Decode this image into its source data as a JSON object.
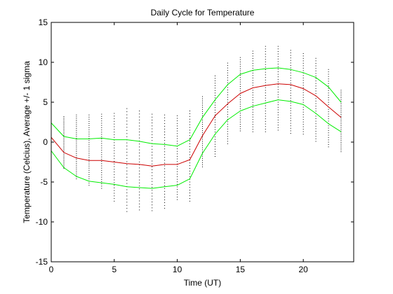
{
  "chart_data": {
    "type": "line",
    "title": "Daily Cycle for Temperature",
    "xlabel": "Time (UT)",
    "ylabel": "Temperature (Celcius), Average +/- 1 sigma",
    "xlim": [
      0,
      24
    ],
    "ylim": [
      -15,
      15
    ],
    "xticks": [
      0,
      5,
      10,
      15,
      20
    ],
    "yticks": [
      -15,
      -10,
      -5,
      0,
      5,
      10,
      15
    ],
    "grid": false,
    "x": [
      0,
      1,
      2,
      3,
      4,
      5,
      6,
      7,
      8,
      9,
      10,
      11,
      12,
      13,
      14,
      15,
      16,
      17,
      18,
      19,
      20,
      21,
      22,
      23
    ],
    "series": [
      {
        "role": "average",
        "color": "#cc0000",
        "values": [
          0.6,
          -1.3,
          -2.0,
          -2.3,
          -2.3,
          -2.5,
          -2.7,
          -2.8,
          -3.0,
          -2.8,
          -2.8,
          -2.2,
          0.8,
          3.3,
          4.8,
          6.1,
          6.8,
          7.1,
          7.3,
          7.2,
          6.7,
          5.8,
          4.4,
          3.1
        ]
      },
      {
        "role": "plus-1-sigma",
        "color": "#00ee00",
        "values": [
          2.4,
          0.7,
          0.4,
          0.4,
          0.5,
          0.3,
          0.3,
          0.1,
          -0.2,
          -0.3,
          -0.5,
          0.3,
          3.1,
          5.3,
          7.2,
          8.5,
          9.0,
          9.2,
          9.3,
          9.1,
          8.7,
          8.1,
          6.9,
          5.0
        ]
      },
      {
        "role": "minus-1-sigma",
        "color": "#00ee00",
        "values": [
          -1.1,
          -3.2,
          -4.3,
          -4.9,
          -5.1,
          -5.3,
          -5.6,
          -5.7,
          -5.8,
          -5.6,
          -5.4,
          -4.6,
          -1.4,
          1.0,
          2.8,
          3.9,
          4.5,
          4.9,
          5.3,
          5.1,
          4.7,
          3.6,
          2.3,
          1.3
        ]
      },
      {
        "role": "observations",
        "marker": "dot",
        "color": "#000000",
        "spread": [
          [
            -1.1,
            2.4
          ],
          [
            -3.3,
            3.2
          ],
          [
            -4.6,
            3.4
          ],
          [
            -5.4,
            3.4
          ],
          [
            -5.8,
            3.5
          ],
          [
            -7.4,
            3.6
          ],
          [
            -8.7,
            4.2
          ],
          [
            -8.5,
            3.9
          ],
          [
            -8.6,
            3.5
          ],
          [
            -8.3,
            3.4
          ],
          [
            -7.2,
            3.3
          ],
          [
            -7.4,
            3.9
          ],
          [
            -3.1,
            5.7
          ],
          [
            -1.8,
            8.3
          ],
          [
            -0.2,
            9.9
          ],
          [
            1.4,
            10.6
          ],
          [
            1.3,
            11.4
          ],
          [
            1.3,
            12.0
          ],
          [
            1.5,
            12.0
          ],
          [
            1.1,
            11.5
          ],
          [
            1.0,
            11.1
          ],
          [
            0.1,
            10.5
          ],
          [
            -0.6,
            9.1
          ],
          [
            -1.2,
            6.5
          ]
        ]
      }
    ]
  }
}
